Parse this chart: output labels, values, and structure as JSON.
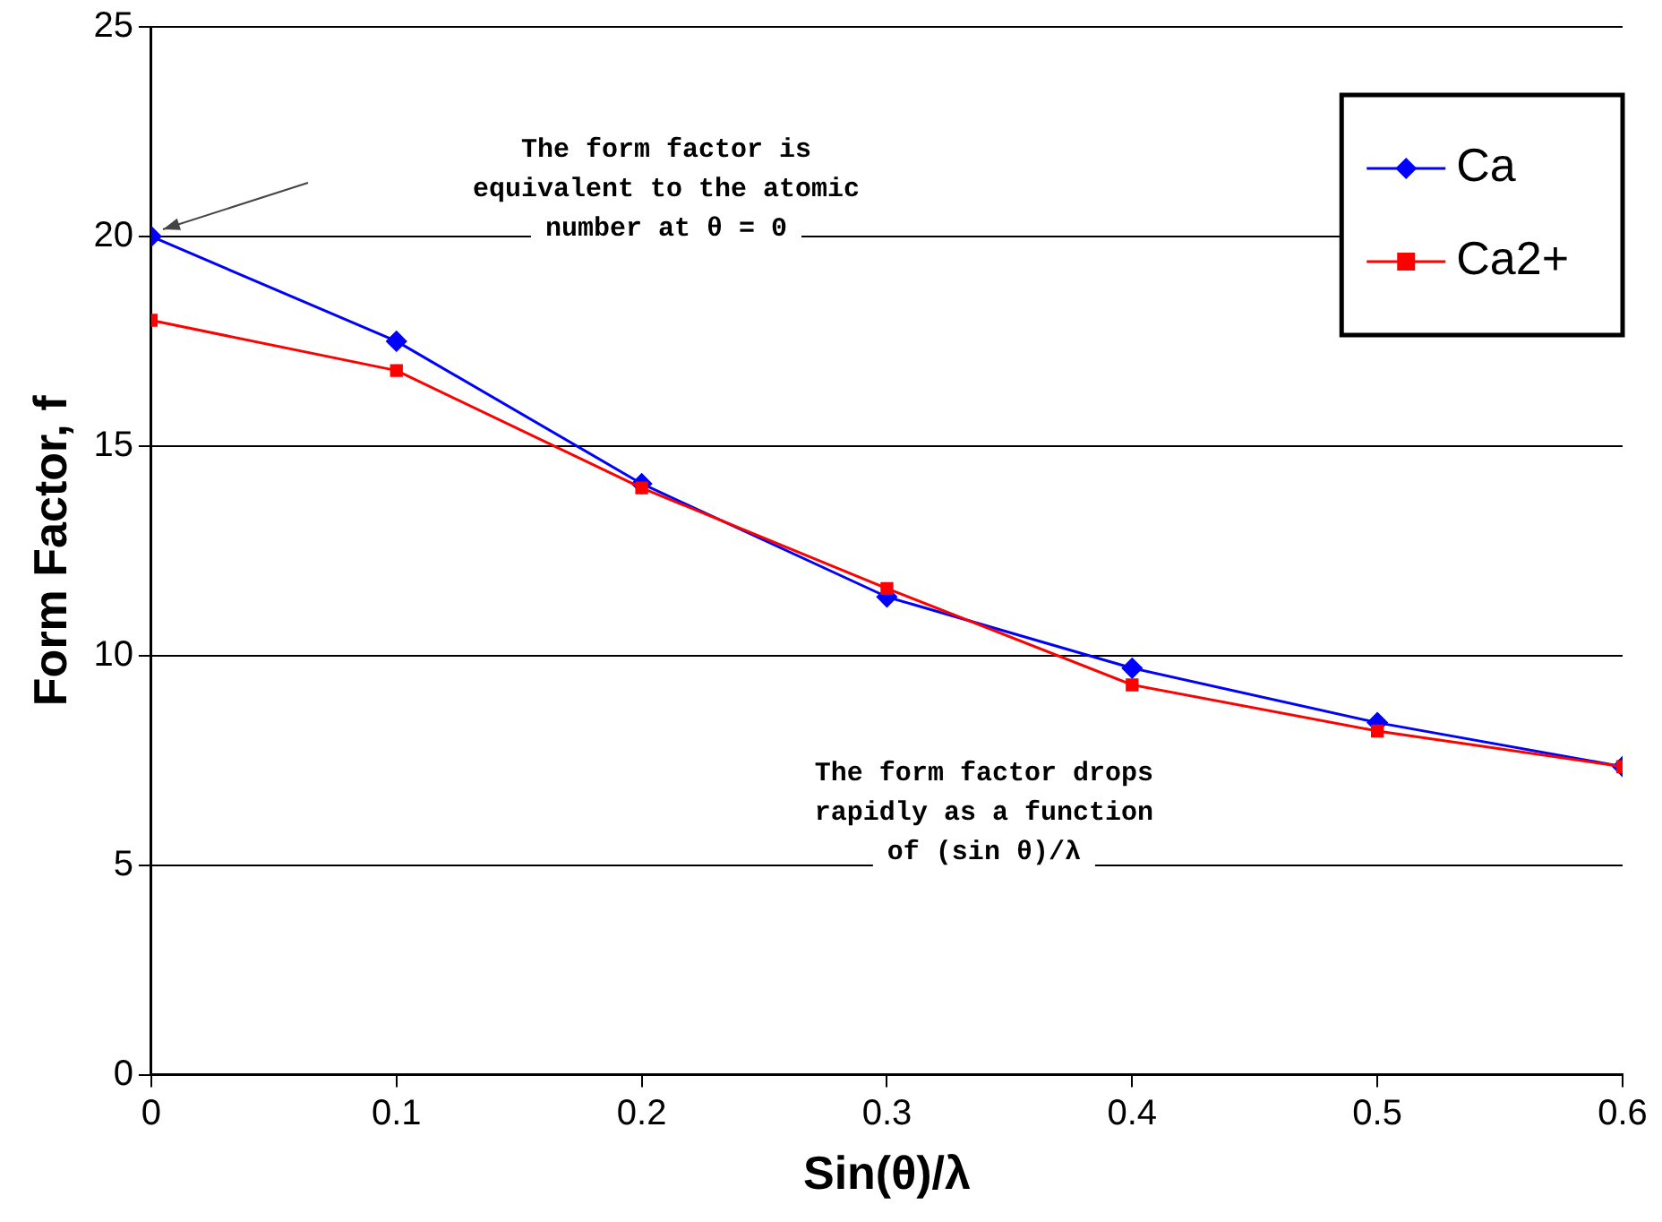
{
  "chart_data": {
    "type": "line",
    "xlabel": "Sin(θ)/λ",
    "ylabel": "Form Factor, f",
    "x": [
      0,
      0.1,
      0.2,
      0.3,
      0.4,
      0.5,
      0.6
    ],
    "series": [
      {
        "name": "Ca",
        "color": "#0000ff",
        "marker": "diamond",
        "values": [
          20,
          17.5,
          14.1,
          11.4,
          9.7,
          8.4,
          7.35
        ]
      },
      {
        "name": "Ca2+",
        "color": "#ff0000",
        "marker": "square",
        "values": [
          18,
          16.8,
          14,
          11.6,
          9.3,
          8.2,
          7.35
        ]
      }
    ],
    "xlim": [
      0,
      0.6
    ],
    "xticks": [
      0,
      0.1,
      0.2,
      0.3,
      0.4,
      0.5,
      0.6
    ],
    "ylim": [
      0,
      25
    ],
    "yticks": [
      0,
      5,
      10,
      15,
      20,
      25
    ],
    "grid": "y",
    "legend": "top right",
    "line_style": "solid",
    "annotations": [
      "The form factor is equivalent to the atomic number at θ = 0",
      "The form factor drops rapidly as a function of (sin θ)/λ"
    ]
  }
}
